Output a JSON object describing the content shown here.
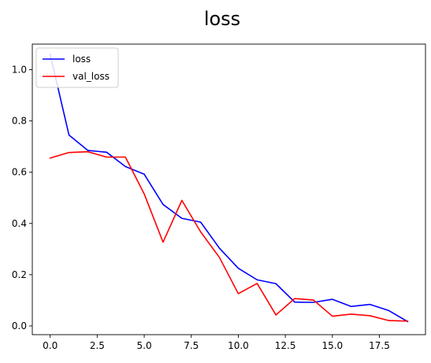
{
  "chart_data": {
    "type": "line",
    "title": "loss",
    "xlabel": "",
    "ylabel": "",
    "x": [
      0,
      1,
      2,
      3,
      4,
      5,
      6,
      7,
      8,
      9,
      10,
      11,
      12,
      13,
      14,
      15,
      16,
      17,
      18,
      19
    ],
    "series": [
      {
        "name": "loss",
        "color": "#0000ff",
        "values": [
          1.06,
          0.745,
          0.685,
          0.678,
          0.622,
          0.592,
          0.474,
          0.42,
          0.405,
          0.303,
          0.225,
          0.18,
          0.165,
          0.093,
          0.092,
          0.104,
          0.076,
          0.084,
          0.06,
          0.017
        ]
      },
      {
        "name": "val_loss",
        "color": "#ff0000",
        "values": [
          0.655,
          0.677,
          0.68,
          0.659,
          0.659,
          0.515,
          0.327,
          0.49,
          0.367,
          0.267,
          0.126,
          0.166,
          0.043,
          0.107,
          0.101,
          0.038,
          0.046,
          0.04,
          0.021,
          0.019
        ]
      }
    ],
    "xlim": [
      -0.95,
      19.95
    ],
    "ylim": [
      -0.034,
      1.1
    ],
    "xticks": [
      0.0,
      2.5,
      5.0,
      7.5,
      10.0,
      12.5,
      15.0,
      17.5
    ],
    "xtick_labels": [
      "0.0",
      "2.5",
      "5.0",
      "7.5",
      "10.0",
      "12.5",
      "15.0",
      "17.5"
    ],
    "yticks": [
      0.0,
      0.2,
      0.4,
      0.6,
      0.8,
      1.0
    ],
    "ytick_labels": [
      "0.0",
      "0.2",
      "0.4",
      "0.6",
      "0.8",
      "1.0"
    ],
    "grid": false,
    "legend_position": "upper-left"
  }
}
